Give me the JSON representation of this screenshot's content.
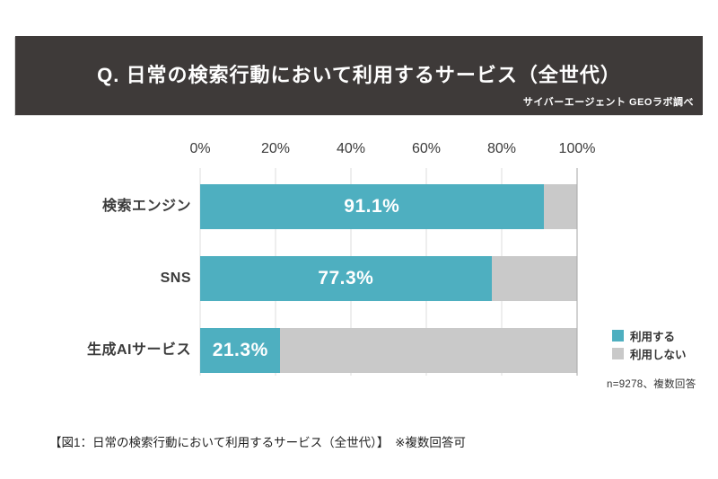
{
  "header": {
    "title": "Q. 日常の検索行動において利用するサービス（全世代）",
    "credit": "サイバーエージェント GEOラボ調べ",
    "bg_color": "#3E3A39"
  },
  "chart_data": {
    "type": "bar",
    "orientation": "horizontal",
    "title": "Q. 日常の検索行動において利用するサービス（全世代）",
    "categories": [
      "検索エンジン",
      "SNS",
      "生成AIサービス"
    ],
    "series": [
      {
        "name": "利用する",
        "color": "#4EAFC0",
        "values": [
          91.1,
          77.3,
          21.3
        ]
      },
      {
        "name": "利用しない",
        "color": "#C9C9C9",
        "values": [
          8.9,
          22.7,
          78.7
        ]
      }
    ],
    "value_labels": [
      "91.1%",
      "77.3%",
      "21.3%"
    ],
    "x_ticks": [
      "0%",
      "20%",
      "40%",
      "60%",
      "80%",
      "100%"
    ],
    "xlim": [
      0,
      100
    ],
    "grid": true,
    "gridline_color": "#dcdcdc",
    "end_gridline_color": "#a6a6a6",
    "legend_position": "right-bottom"
  },
  "footnote": "n=9278、複数回答",
  "caption": "【図1：日常の検索行動において利用するサービス（全世代）】　※複数回答可"
}
